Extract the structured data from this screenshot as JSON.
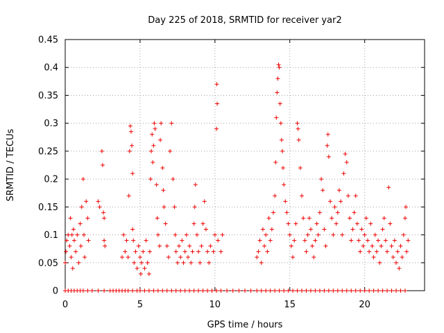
{
  "chart_data": {
    "type": "scatter",
    "title": "Day 225 of 2018, SRMTID for receiver yar2",
    "xlabel": "GPS time / hours",
    "ylabel": "SRMTID / TECUs",
    "xlim": [
      0,
      24
    ],
    "ylim": [
      0,
      0.45
    ],
    "x_ticks": [
      0,
      5,
      10,
      15,
      20
    ],
    "x_tick_labels": [
      "0",
      "5",
      "10",
      "15",
      "20"
    ],
    "y_ticks": [
      0,
      0.05,
      0.1,
      0.15,
      0.2,
      0.25,
      0.3,
      0.35,
      0.4,
      0.45
    ],
    "y_tick_labels": [
      "0",
      "0.05",
      "0.1",
      "0.15",
      "0.2",
      "0.25",
      "0.3",
      "0.35",
      "0.4",
      "0.45"
    ],
    "grid": true,
    "marker": "+",
    "marker_color": "#ee0000",
    "series": [
      {
        "name": "SRMTID",
        "color": "#ee0000",
        "zero_points_x": [
          0.0,
          0.2,
          0.4,
          0.6,
          0.8,
          1.0,
          1.2,
          1.5,
          1.8,
          2.2,
          2.6,
          3.0,
          3.2,
          3.4,
          3.6,
          3.8,
          4.0,
          4.2,
          4.5,
          4.8,
          5.0,
          5.3,
          5.6,
          5.9,
          6.2,
          6.5,
          6.8,
          7.1,
          7.4,
          7.7,
          8.0,
          8.3,
          8.6,
          8.9,
          9.2,
          9.5,
          9.8,
          10.1,
          10.4,
          10.8,
          11.2,
          11.6,
          12.0,
          12.4,
          12.8,
          13.1,
          13.4,
          13.7,
          14.0,
          14.3,
          14.6,
          14.9,
          15.2,
          15.5,
          15.8,
          16.1,
          16.4,
          16.7,
          17.0,
          17.3,
          17.6,
          17.9,
          18.2,
          18.5,
          18.8,
          19.1,
          19.4,
          19.7,
          20.0,
          20.3,
          20.6,
          20.9,
          21.2,
          21.5,
          21.8,
          22.1,
          22.4,
          22.7
        ],
        "points": [
          [
            0.0,
            0.05
          ],
          [
            0.05,
            0.07
          ],
          [
            0.1,
            0.09
          ],
          [
            0.2,
            0.1
          ],
          [
            0.3,
            0.08
          ],
          [
            0.35,
            0.13
          ],
          [
            0.4,
            0.06
          ],
          [
            0.45,
            0.1
          ],
          [
            0.5,
            0.04
          ],
          [
            0.55,
            0.11
          ],
          [
            0.6,
            0.09
          ],
          [
            0.7,
            0.07
          ],
          [
            0.8,
            0.1
          ],
          [
            0.9,
            0.05
          ],
          [
            1.0,
            0.12
          ],
          [
            1.05,
            0.08
          ],
          [
            1.1,
            0.15
          ],
          [
            1.2,
            0.2
          ],
          [
            1.25,
            0.1
          ],
          [
            1.3,
            0.06
          ],
          [
            1.4,
            0.16
          ],
          [
            1.5,
            0.13
          ],
          [
            1.55,
            0.09
          ],
          [
            2.2,
            0.16
          ],
          [
            2.3,
            0.15
          ],
          [
            2.45,
            0.25
          ],
          [
            2.5,
            0.225
          ],
          [
            2.55,
            0.14
          ],
          [
            2.6,
            0.13
          ],
          [
            2.6,
            0.09
          ],
          [
            2.65,
            0.08
          ],
          [
            3.8,
            0.06
          ],
          [
            3.9,
            0.1
          ],
          [
            4.0,
            0.07
          ],
          [
            4.1,
            0.09
          ],
          [
            4.2,
            0.06
          ],
          [
            4.25,
            0.17
          ],
          [
            4.3,
            0.25
          ],
          [
            4.35,
            0.295
          ],
          [
            4.4,
            0.285
          ],
          [
            4.45,
            0.26
          ],
          [
            4.5,
            0.21
          ],
          [
            4.5,
            0.11
          ],
          [
            4.55,
            0.09
          ],
          [
            4.6,
            0.05
          ],
          [
            4.7,
            0.07
          ],
          [
            4.8,
            0.04
          ],
          [
            4.9,
            0.08
          ],
          [
            5.0,
            0.06
          ],
          [
            5.05,
            0.03
          ],
          [
            5.1,
            0.05
          ],
          [
            5.2,
            0.07
          ],
          [
            5.3,
            0.04
          ],
          [
            5.4,
            0.09
          ],
          [
            5.5,
            0.05
          ],
          [
            5.6,
            0.03
          ],
          [
            5.65,
            0.07
          ],
          [
            5.7,
            0.2
          ],
          [
            5.75,
            0.25
          ],
          [
            5.8,
            0.28
          ],
          [
            5.85,
            0.23
          ],
          [
            5.9,
            0.26
          ],
          [
            5.95,
            0.3
          ],
          [
            6.0,
            0.29
          ],
          [
            6.1,
            0.19
          ],
          [
            6.15,
            0.13
          ],
          [
            6.2,
            0.1
          ],
          [
            6.3,
            0.08
          ],
          [
            6.35,
            0.27
          ],
          [
            6.4,
            0.3
          ],
          [
            6.5,
            0.22
          ],
          [
            6.55,
            0.18
          ],
          [
            6.6,
            0.15
          ],
          [
            6.7,
            0.12
          ],
          [
            6.8,
            0.08
          ],
          [
            6.9,
            0.06
          ],
          [
            7.0,
            0.25
          ],
          [
            7.1,
            0.3
          ],
          [
            7.2,
            0.2
          ],
          [
            7.3,
            0.15
          ],
          [
            7.35,
            0.1
          ],
          [
            7.4,
            0.07
          ],
          [
            7.5,
            0.05
          ],
          [
            7.6,
            0.08
          ],
          [
            7.7,
            0.06
          ],
          [
            7.8,
            0.09
          ],
          [
            7.9,
            0.05
          ],
          [
            8.0,
            0.07
          ],
          [
            8.1,
            0.1
          ],
          [
            8.2,
            0.06
          ],
          [
            8.3,
            0.08
          ],
          [
            8.4,
            0.05
          ],
          [
            8.5,
            0.07
          ],
          [
            8.6,
            0.12
          ],
          [
            8.65,
            0.15
          ],
          [
            8.7,
            0.19
          ],
          [
            8.8,
            0.1
          ],
          [
            8.9,
            0.07
          ],
          [
            9.0,
            0.05
          ],
          [
            9.1,
            0.08
          ],
          [
            9.2,
            0.12
          ],
          [
            9.3,
            0.16
          ],
          [
            9.4,
            0.11
          ],
          [
            9.5,
            0.07
          ],
          [
            9.6,
            0.05
          ],
          [
            9.7,
            0.08
          ],
          [
            9.9,
            0.07
          ],
          [
            10.0,
            0.1
          ],
          [
            10.1,
            0.29
          ],
          [
            10.12,
            0.37
          ],
          [
            10.15,
            0.335
          ],
          [
            10.2,
            0.09
          ],
          [
            10.4,
            0.07
          ],
          [
            10.5,
            0.1
          ],
          [
            12.8,
            0.06
          ],
          [
            12.9,
            0.07
          ],
          [
            13.0,
            0.09
          ],
          [
            13.1,
            0.05
          ],
          [
            13.2,
            0.11
          ],
          [
            13.3,
            0.08
          ],
          [
            13.4,
            0.1
          ],
          [
            13.5,
            0.07
          ],
          [
            13.6,
            0.13
          ],
          [
            13.7,
            0.09
          ],
          [
            13.8,
            0.11
          ],
          [
            13.9,
            0.14
          ],
          [
            14.0,
            0.17
          ],
          [
            14.05,
            0.23
          ],
          [
            14.1,
            0.31
          ],
          [
            14.15,
            0.355
          ],
          [
            14.2,
            0.38
          ],
          [
            14.25,
            0.405
          ],
          [
            14.3,
            0.4
          ],
          [
            14.35,
            0.335
          ],
          [
            14.4,
            0.3
          ],
          [
            14.45,
            0.27
          ],
          [
            14.5,
            0.25
          ],
          [
            14.55,
            0.22
          ],
          [
            14.6,
            0.19
          ],
          [
            14.7,
            0.16
          ],
          [
            14.8,
            0.14
          ],
          [
            14.9,
            0.12
          ],
          [
            15.0,
            0.1
          ],
          [
            15.1,
            0.08
          ],
          [
            15.2,
            0.06
          ],
          [
            15.3,
            0.09
          ],
          [
            15.4,
            0.12
          ],
          [
            15.5,
            0.3
          ],
          [
            15.55,
            0.29
          ],
          [
            15.6,
            0.27
          ],
          [
            15.7,
            0.22
          ],
          [
            15.8,
            0.17
          ],
          [
            15.9,
            0.13
          ],
          [
            16.0,
            0.09
          ],
          [
            16.1,
            0.07
          ],
          [
            16.2,
            0.1
          ],
          [
            16.3,
            0.13
          ],
          [
            16.4,
            0.11
          ],
          [
            16.5,
            0.08
          ],
          [
            16.6,
            0.06
          ],
          [
            16.7,
            0.09
          ],
          [
            16.8,
            0.12
          ],
          [
            16.9,
            0.1
          ],
          [
            17.0,
            0.14
          ],
          [
            17.1,
            0.2
          ],
          [
            17.2,
            0.18
          ],
          [
            17.3,
            0.11
          ],
          [
            17.4,
            0.08
          ],
          [
            17.5,
            0.26
          ],
          [
            17.55,
            0.28
          ],
          [
            17.6,
            0.24
          ],
          [
            17.7,
            0.16
          ],
          [
            17.8,
            0.13
          ],
          [
            17.9,
            0.1
          ],
          [
            18.0,
            0.15
          ],
          [
            18.1,
            0.12
          ],
          [
            18.2,
            0.14
          ],
          [
            18.3,
            0.18
          ],
          [
            18.4,
            0.16
          ],
          [
            18.5,
            0.1
          ],
          [
            18.6,
            0.21
          ],
          [
            18.7,
            0.245
          ],
          [
            18.8,
            0.23
          ],
          [
            18.9,
            0.17
          ],
          [
            19.0,
            0.13
          ],
          [
            19.1,
            0.09
          ],
          [
            19.2,
            0.11
          ],
          [
            19.3,
            0.14
          ],
          [
            19.4,
            0.17
          ],
          [
            19.5,
            0.12
          ],
          [
            19.6,
            0.09
          ],
          [
            19.7,
            0.07
          ],
          [
            19.8,
            0.11
          ],
          [
            19.9,
            0.08
          ],
          [
            20.0,
            0.1
          ],
          [
            20.1,
            0.13
          ],
          [
            20.2,
            0.09
          ],
          [
            20.3,
            0.07
          ],
          [
            20.4,
            0.12
          ],
          [
            20.5,
            0.08
          ],
          [
            20.6,
            0.06
          ],
          [
            20.7,
            0.1
          ],
          [
            20.8,
            0.07
          ],
          [
            20.9,
            0.09
          ],
          [
            21.0,
            0.05
          ],
          [
            21.1,
            0.08
          ],
          [
            21.2,
            0.11
          ],
          [
            21.3,
            0.13
          ],
          [
            21.4,
            0.09
          ],
          [
            21.5,
            0.07
          ],
          [
            21.6,
            0.185
          ],
          [
            21.7,
            0.12
          ],
          [
            21.8,
            0.08
          ],
          [
            21.9,
            0.06
          ],
          [
            22.0,
            0.09
          ],
          [
            22.1,
            0.05
          ],
          [
            22.2,
            0.07
          ],
          [
            22.3,
            0.04
          ],
          [
            22.4,
            0.08
          ],
          [
            22.5,
            0.06
          ],
          [
            22.6,
            0.1
          ],
          [
            22.7,
            0.13
          ],
          [
            22.75,
            0.15
          ],
          [
            22.8,
            0.07
          ],
          [
            22.9,
            0.09
          ]
        ]
      }
    ]
  }
}
